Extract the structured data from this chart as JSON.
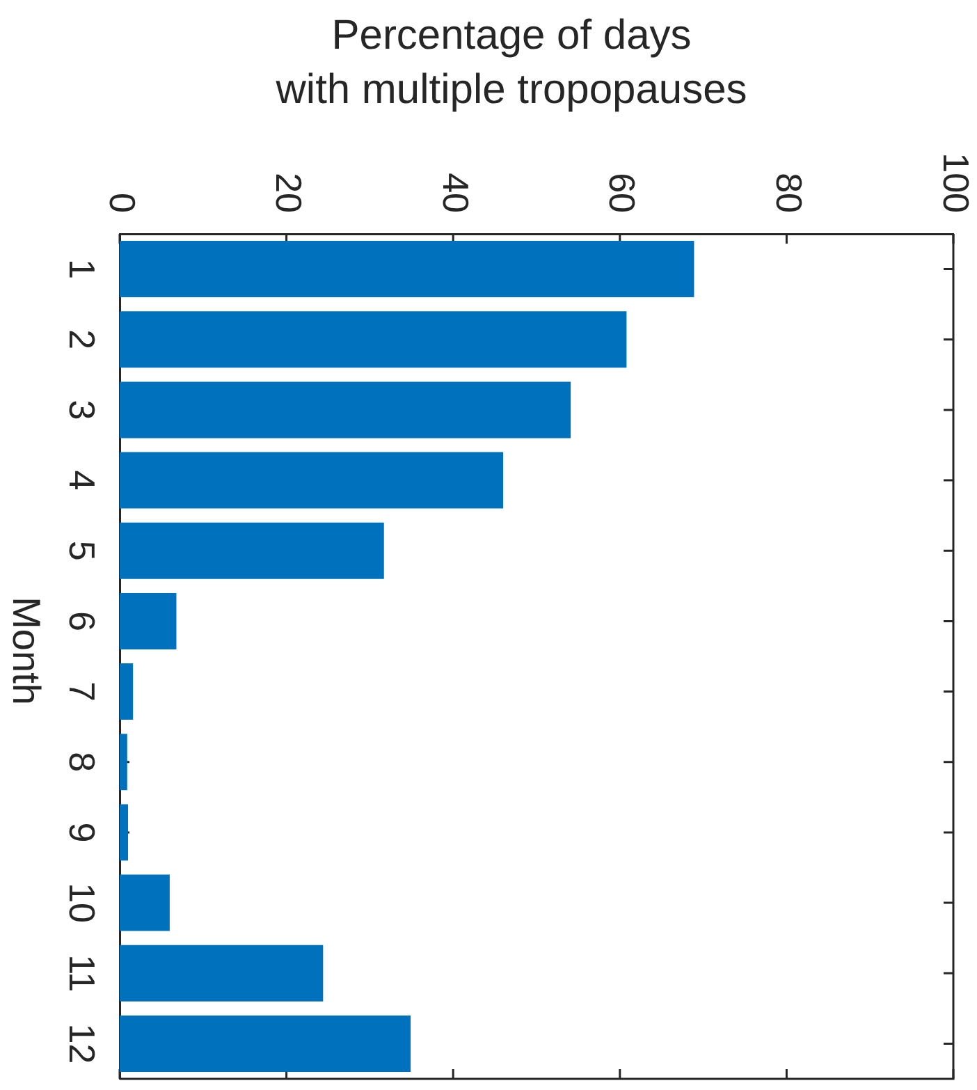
{
  "chart_data": {
    "type": "bar",
    "orientation": "horizontal",
    "title": "Percentage of days\nwith multiple tropopauses",
    "ylabel": "Month",
    "categories": [
      "1",
      "2",
      "3",
      "4",
      "5",
      "6",
      "7",
      "8",
      "9",
      "10",
      "11",
      "12"
    ],
    "values": [
      68.9,
      60.8,
      54.1,
      46.0,
      31.7,
      6.8,
      1.6,
      0.9,
      1.0,
      6.0,
      24.4,
      34.9
    ],
    "color": "#0072bd",
    "xlim": [
      0,
      100
    ],
    "xticks": [
      0,
      20,
      40,
      60,
      80,
      100
    ]
  }
}
